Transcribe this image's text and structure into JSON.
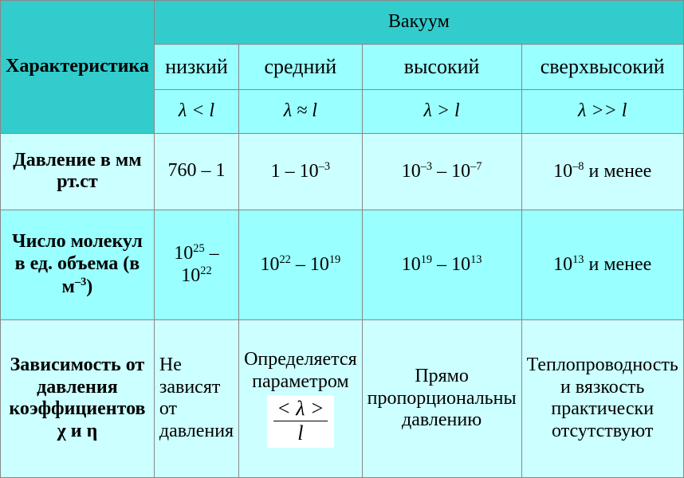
{
  "colors": {
    "header_dark": "#33cccc",
    "header_light": "#99ffff",
    "body": "#ccffff",
    "body_alt": "#99ffff",
    "border": "#888888",
    "white": "#ffffff"
  },
  "fonts": {
    "family": "Times New Roman",
    "header_big_pt": 32,
    "header_pt": 24,
    "label_pt": 22,
    "body_pt": 24,
    "lambda_pt": 30
  },
  "header": {
    "characteristic": "Характеристика",
    "vacuum": "Вакуум",
    "levels": [
      "низкий",
      "средний",
      "высокий",
      "сверхвысокий"
    ],
    "lambda": [
      "λ < l",
      "λ ≈ l",
      "λ > l",
      "λ >> l"
    ]
  },
  "rows": {
    "pressure": {
      "label": "Давление в мм рт.ст",
      "cells_html": [
        "760 – 1",
        "1 – 10<sup>–3</sup>",
        "10<sup>–3</sup> – 10<sup>–7</sup>",
        "10<sup>–8</sup> и менее"
      ]
    },
    "molecules": {
      "label_html": "Число молекул в ед. объема (в м<sup>–3</sup>)",
      "cells_html": [
        "10<sup>25</sup> – 10<sup>22</sup>",
        "10<sup>22</sup> – 10<sup>19</sup>",
        "10<sup>19</sup> – 10<sup>13</sup>",
        "10<sup>13</sup> и менее"
      ]
    },
    "dependence": {
      "label": "Зависимость от давления коэффициентов  χ и η",
      "cells": {
        "c0": "Не зависят от давления",
        "c1_top": "Определяется параметром",
        "c1_frac_top": "< λ >",
        "c1_frac_bot": "l",
        "c2": "Прямо пропорциональны давлению",
        "c3": "Теплопроводность и вязкость практически отсутствуют"
      }
    }
  }
}
